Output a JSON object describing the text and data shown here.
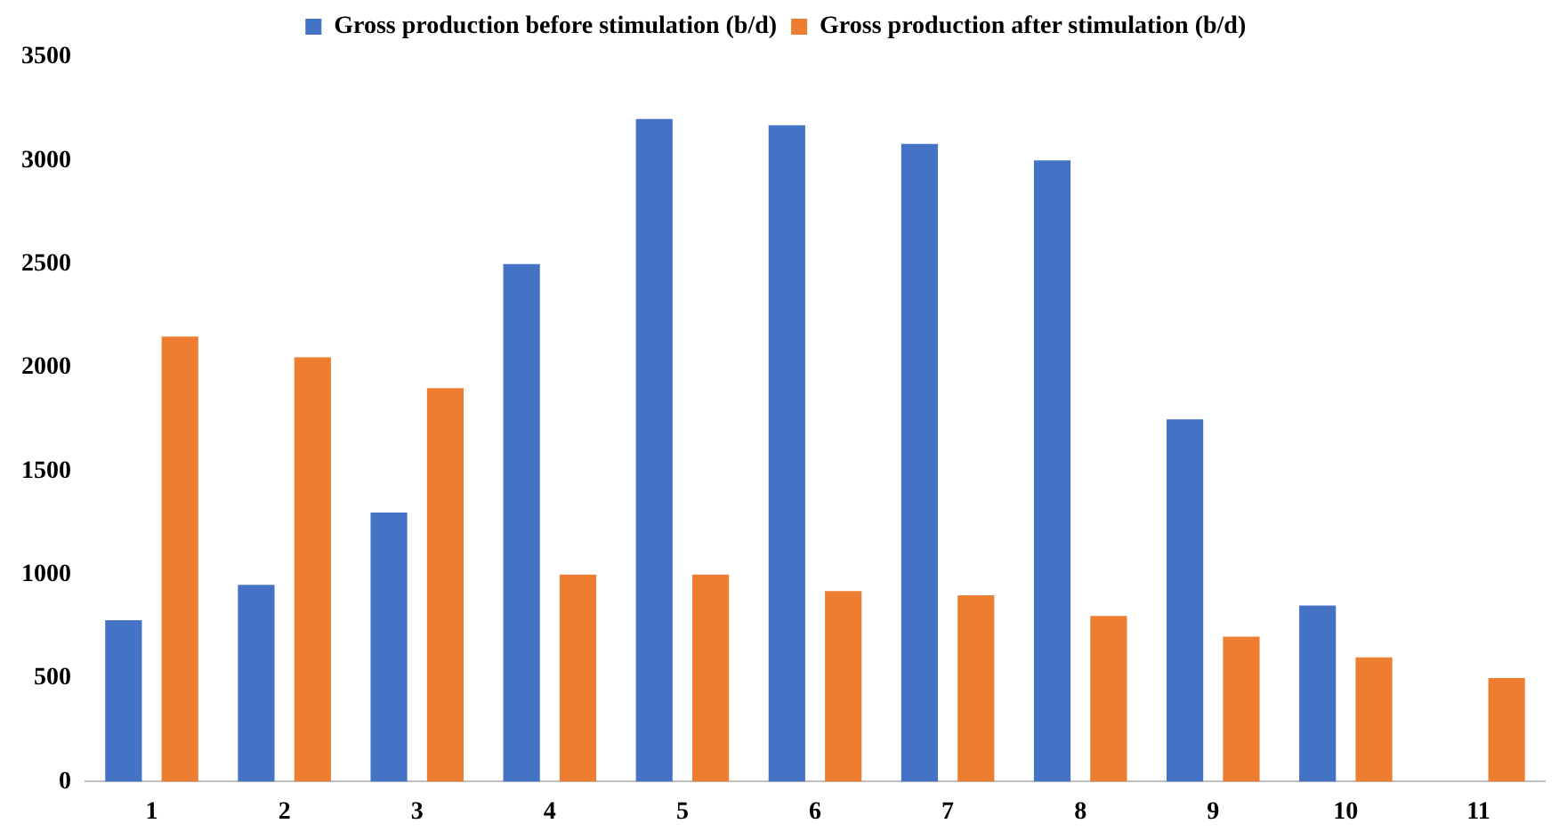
{
  "chart_data": {
    "type": "bar",
    "categories": [
      "1",
      "2",
      "3",
      "4",
      "5",
      "6",
      "7",
      "8",
      "9",
      "10",
      "11"
    ],
    "series": [
      {
        "name": "Gross production before stimulation (b/d)",
        "color": "#4472c4",
        "values": [
          780,
          950,
          1300,
          2500,
          3200,
          3170,
          3080,
          3000,
          1750,
          850,
          null
        ]
      },
      {
        "name": "Gross production after stimulation (b/d)",
        "color": "#ed7d31",
        "values": [
          2150,
          2050,
          1900,
          1000,
          1000,
          920,
          900,
          800,
          700,
          600,
          500
        ]
      }
    ],
    "ylim": [
      0,
      3500
    ],
    "yticks": [
      0,
      500,
      1000,
      1500,
      2000,
      2500,
      3000,
      3500
    ],
    "grid": false,
    "legend": "top"
  }
}
